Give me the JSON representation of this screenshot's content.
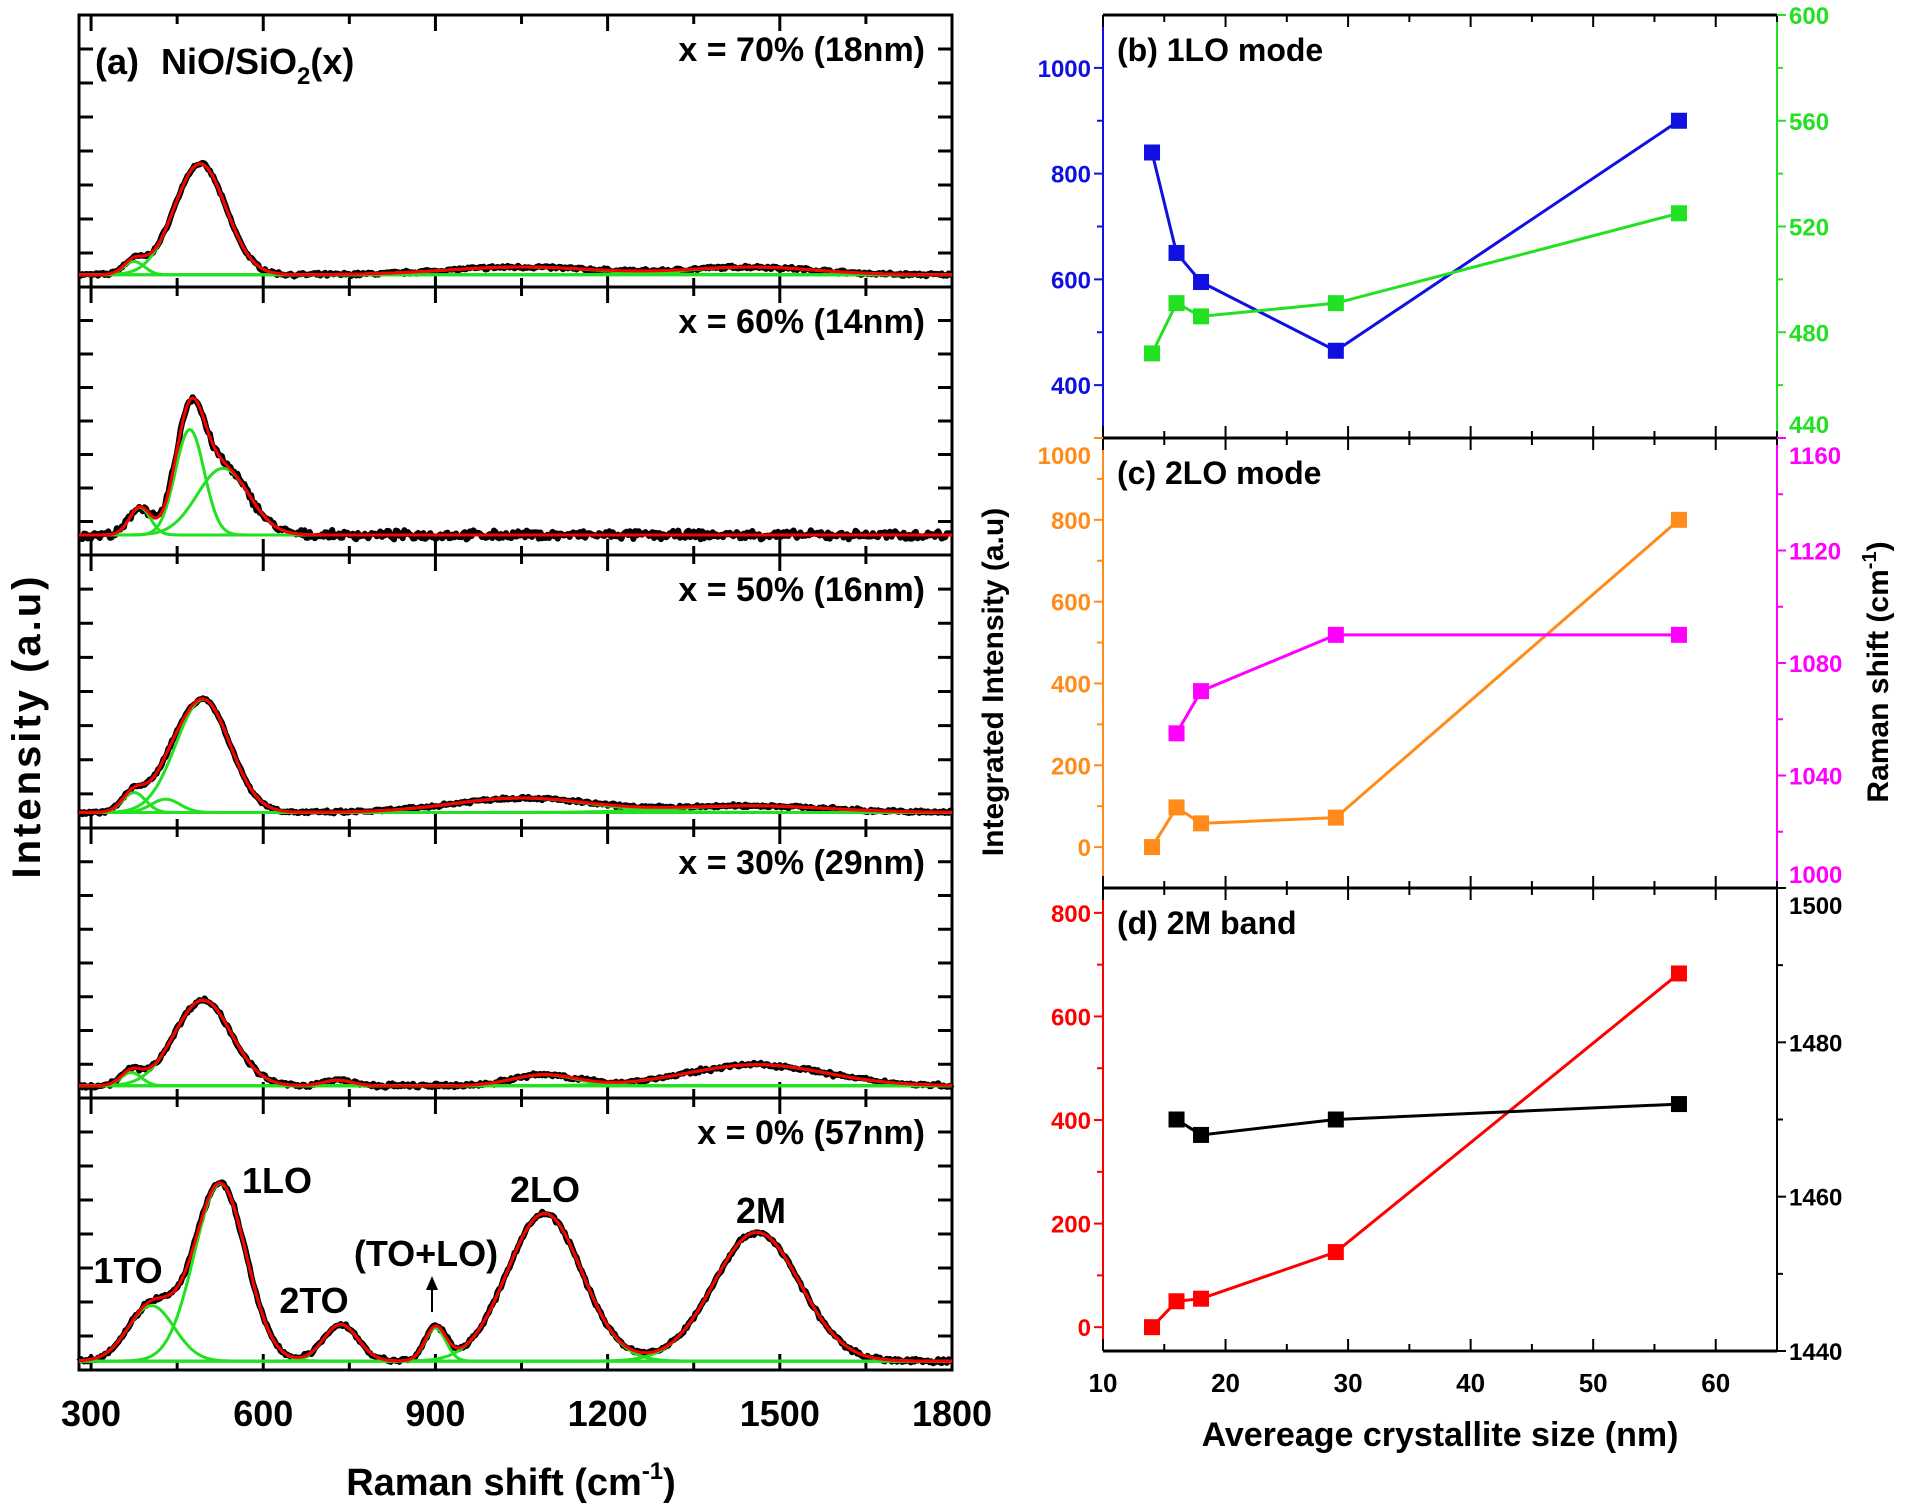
{
  "chart_data": [
    {
      "type": "line",
      "panel_label": "(a)",
      "title": "NiO/SiO",
      "title_sub": "2",
      "title_end": "(x)",
      "xlabel": "Raman shift (cm",
      "xlabel_sup": "-1",
      "xlabel_end": ")",
      "ylabel": "Intensity (a.u)",
      "xlim": [
        279,
        1800
      ],
      "xticks": [
        "300",
        "600",
        "900",
        "1200",
        "1500",
        "1800"
      ],
      "colors": {
        "data": "#000000",
        "fit": "#ff0000",
        "components": "#22e022"
      },
      "spectra": [
        {
          "label": "x = 70% (18nm)",
          "ylim": [
            -0.11,
            2.34
          ],
          "noise": 0.012,
          "components": [
            {
              "center": 375,
              "height": 0.12,
              "sigma": 18
            },
            {
              "center": 490,
              "height": 1.0,
              "sigma": 45
            },
            {
              "center": 1050,
              "height": 0.07,
              "sigma": 130
            },
            {
              "center": 1450,
              "height": 0.07,
              "sigma": 110
            }
          ]
        },
        {
          "label": "x = 60% (14nm)",
          "ylim": [
            -0.18,
            2.23
          ],
          "noise": 0.03,
          "components": [
            {
              "center": 385,
              "height": 0.25,
              "sigma": 18
            },
            {
              "center": 472,
              "height": 0.95,
              "sigma": 25
            },
            {
              "center": 530,
              "height": 0.6,
              "sigma": 45
            }
          ]
        },
        {
          "label": "x = 50% (16nm)",
          "ylim": [
            -0.14,
            2.32
          ],
          "noise": 0.012,
          "components": [
            {
              "center": 375,
              "height": 0.18,
              "sigma": 20
            },
            {
              "center": 430,
              "height": 0.12,
              "sigma": 25
            },
            {
              "center": 495,
              "height": 1.02,
              "sigma": 47
            },
            {
              "center": 1050,
              "height": 0.13,
              "sigma": 120
            },
            {
              "center": 1450,
              "height": 0.06,
              "sigma": 130
            }
          ]
        },
        {
          "label": "x = 30% (29nm)",
          "ylim": [
            -0.11,
            2.32
          ],
          "noise": 0.015,
          "components": [
            {
              "center": 370,
              "height": 0.12,
              "sigma": 18
            },
            {
              "center": 495,
              "height": 0.77,
              "sigma": 50
            },
            {
              "center": 730,
              "height": 0.05,
              "sigma": 25
            },
            {
              "center": 1090,
              "height": 0.1,
              "sigma": 55
            },
            {
              "center": 1460,
              "height": 0.19,
              "sigma": 120
            }
          ]
        },
        {
          "label": "x = 0% (57nm)",
          "ylim": [
            -0.08,
            2.37
          ],
          "noise": 0.015,
          "components": [
            {
              "center": 405,
              "height": 0.5,
              "sigma": 40
            },
            {
              "center": 525,
              "height": 1.6,
              "sigma": 45
            },
            {
              "center": 735,
              "height": 0.33,
              "sigma": 30
            },
            {
              "center": 900,
              "height": 0.3,
              "sigma": 18
            },
            {
              "center": 1090,
              "height": 1.33,
              "sigma": 65
            },
            {
              "center": 1460,
              "height": 1.16,
              "sigma": 75
            }
          ],
          "annotations": [
            "1TO",
            "1LO",
            "2TO",
            "(TO+LO)",
            "2LO",
            "2M"
          ]
        }
      ]
    },
    {
      "type": "line",
      "title": "(b) 1LO mode",
      "x": [
        14,
        16,
        18,
        29,
        57
      ],
      "xlim": [
        10,
        65
      ],
      "left": {
        "ylim": [
          300,
          1100
        ],
        "ticks": [
          400,
          600,
          800,
          1000
        ],
        "minor": [
          500,
          700,
          900
        ],
        "color": "#1010e0",
        "values": [
          840,
          650,
          595,
          465,
          900
        ]
      },
      "right": {
        "ylim": [
          440,
          600
        ],
        "ticks": [
          440,
          480,
          520,
          560,
          600
        ],
        "minor": [
          460,
          500,
          540,
          580
        ],
        "color": "#22e022",
        "values": [
          472,
          491,
          486,
          491,
          525
        ]
      }
    },
    {
      "type": "line",
      "title": "(c) 2LO mode",
      "x": [
        14,
        16,
        18,
        29,
        57
      ],
      "xlim": [
        10,
        65
      ],
      "left": {
        "ylim": [
          -100,
          1000
        ],
        "ticks": [
          0,
          200,
          400,
          600,
          800,
          1000
        ],
        "minor": [
          100,
          300,
          500,
          700,
          900
        ],
        "color": "#ff8c1a",
        "values": [
          0,
          97,
          58,
          72,
          800
        ]
      },
      "right": {
        "ylim": [
          1000,
          1160
        ],
        "ticks": [
          1000,
          1040,
          1080,
          1120,
          1160
        ],
        "minor": [
          1020,
          1060,
          1100,
          1140
        ],
        "color": "#ff00ff",
        "x": [
          16,
          18,
          29,
          57
        ],
        "values": [
          1055,
          1070,
          1090,
          1090
        ]
      }
    },
    {
      "type": "line",
      "title": "(d) 2M band",
      "x": [
        14,
        16,
        18,
        29,
        57
      ],
      "xlim": [
        10,
        65
      ],
      "xticks": [
        "10",
        "20",
        "30",
        "40",
        "50",
        "60"
      ],
      "left": {
        "ylim": [
          -46,
          848
        ],
        "ticks": [
          0,
          200,
          400,
          600,
          800
        ],
        "minor": [
          100,
          300,
          500,
          700
        ],
        "color": "#ff0000",
        "values": [
          0,
          50,
          55,
          145,
          683
        ]
      },
      "right": {
        "ylim": [
          1440,
          1500
        ],
        "ticks": [
          1440,
          1460,
          1480,
          1500
        ],
        "minor": [
          1450,
          1470,
          1490
        ],
        "color": "#000000",
        "x": [
          16,
          18,
          29,
          57
        ],
        "values": [
          1470,
          1468,
          1470,
          1472
        ]
      }
    }
  ],
  "shared": {
    "left_ylabel": "Integrated Intensity (a.u)",
    "right_ylabel": "Raman shift (cm",
    "right_ylabel_sup": "-1",
    "right_ylabel_end": ")",
    "xlabel": "Avereage crystallite size (nm)"
  }
}
